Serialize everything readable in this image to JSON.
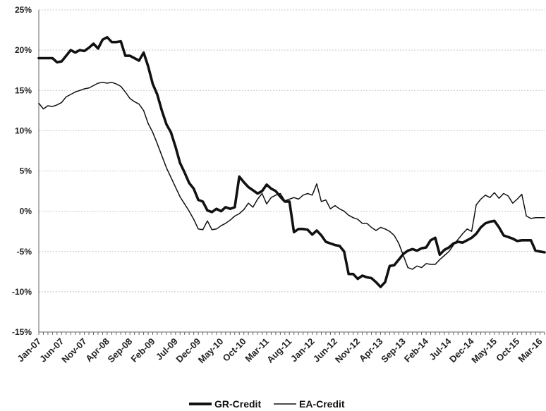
{
  "chart_data": {
    "type": "line",
    "title": "",
    "xlabel": "",
    "ylabel": "",
    "ylim": [
      -15,
      25
    ],
    "y_ticks": [
      25,
      20,
      15,
      10,
      5,
      0,
      -5,
      -10,
      -15
    ],
    "y_tick_labels": [
      "25%",
      "20%",
      "15%",
      "10%",
      "5%",
      "0%",
      "-5%",
      "-10%",
      "-15%"
    ],
    "x_tick_labels": [
      "Jan-07",
      "Jun-07",
      "Nov-07",
      "Apr-08",
      "Sep-08",
      "Feb-09",
      "Jul-09",
      "Dec-09",
      "May-10",
      "Oct-10",
      "Mar-11",
      "Aug-11",
      "Jan-12",
      "Jun-12",
      "Nov-12",
      "Apr-13",
      "Sep-13",
      "Feb-14",
      "Jul-14",
      "Dec-14",
      "May-15",
      "Oct-15",
      "Mar-16"
    ],
    "x_range": [
      "Jan-07",
      "Apr-16"
    ],
    "grid": true,
    "legend": "bottom",
    "series": [
      {
        "name": "GR-Credit",
        "color": "#111111",
        "style": "thick",
        "points": [
          [
            "Jan-07",
            19.0
          ],
          [
            "Feb-07",
            19.0
          ],
          [
            "Mar-07",
            19.0
          ],
          [
            "Apr-07",
            19.0
          ],
          [
            "May-07",
            18.5
          ],
          [
            "Jun-07",
            18.6
          ],
          [
            "Jul-07",
            19.3
          ],
          [
            "Aug-07",
            20.0
          ],
          [
            "Sep-07",
            19.7
          ],
          [
            "Oct-07",
            20.0
          ],
          [
            "Nov-07",
            19.9
          ],
          [
            "Dec-07",
            20.3
          ],
          [
            "Jan-08",
            20.8
          ],
          [
            "Feb-08",
            20.2
          ],
          [
            "Mar-08",
            21.3
          ],
          [
            "Apr-08",
            21.6
          ],
          [
            "May-08",
            21.0
          ],
          [
            "Jun-08",
            21.0
          ],
          [
            "Jul-08",
            21.1
          ],
          [
            "Aug-08",
            19.3
          ],
          [
            "Sep-08",
            19.3
          ],
          [
            "Oct-08",
            19.0
          ],
          [
            "Nov-08",
            18.7
          ],
          [
            "Dec-08",
            19.7
          ],
          [
            "Jan-09",
            18.0
          ],
          [
            "Feb-09",
            15.8
          ],
          [
            "Mar-09",
            14.5
          ],
          [
            "Apr-09",
            12.5
          ],
          [
            "May-09",
            10.8
          ],
          [
            "Jun-09",
            9.8
          ],
          [
            "Jul-09",
            8.0
          ],
          [
            "Aug-09",
            6.0
          ],
          [
            "Sep-09",
            4.8
          ],
          [
            "Oct-09",
            3.5
          ],
          [
            "Nov-09",
            2.8
          ],
          [
            "Dec-09",
            1.4
          ],
          [
            "Jan-10",
            1.2
          ],
          [
            "Feb-10",
            0.1
          ],
          [
            "Mar-10",
            -0.1
          ],
          [
            "Apr-10",
            0.3
          ],
          [
            "May-10",
            0.0
          ],
          [
            "Jun-10",
            0.5
          ],
          [
            "Jul-10",
            0.3
          ],
          [
            "Aug-10",
            0.5
          ],
          [
            "Sep-10",
            4.3
          ],
          [
            "Oct-10",
            3.6
          ],
          [
            "Nov-10",
            3.0
          ],
          [
            "Dec-10",
            2.6
          ],
          [
            "Jan-11",
            2.2
          ],
          [
            "Feb-11",
            2.5
          ],
          [
            "Mar-11",
            3.3
          ],
          [
            "Apr-11",
            2.8
          ],
          [
            "May-11",
            2.5
          ],
          [
            "Jun-11",
            1.8
          ],
          [
            "Jul-11",
            1.2
          ],
          [
            "Aug-11",
            1.2
          ],
          [
            "Sep-11",
            -2.6
          ],
          [
            "Oct-11",
            -2.2
          ],
          [
            "Nov-11",
            -2.2
          ],
          [
            "Dec-11",
            -2.3
          ],
          [
            "Jan-12",
            -2.9
          ],
          [
            "Feb-12",
            -2.4
          ],
          [
            "Mar-12",
            -3.0
          ],
          [
            "Apr-12",
            -3.8
          ],
          [
            "May-12",
            -4.0
          ],
          [
            "Jun-12",
            -4.2
          ],
          [
            "Jul-12",
            -4.3
          ],
          [
            "Aug-12",
            -5.0
          ],
          [
            "Sep-12",
            -7.8
          ],
          [
            "Oct-12",
            -7.8
          ],
          [
            "Nov-12",
            -8.4
          ],
          [
            "Dec-12",
            -8.0
          ],
          [
            "Jan-13",
            -8.2
          ],
          [
            "Feb-13",
            -8.3
          ],
          [
            "Mar-13",
            -8.8
          ],
          [
            "Apr-13",
            -9.4
          ],
          [
            "May-13",
            -8.8
          ],
          [
            "Jun-13",
            -6.8
          ],
          [
            "Jul-13",
            -6.7
          ],
          [
            "Aug-13",
            -6.0
          ],
          [
            "Sep-13",
            -5.3
          ],
          [
            "Oct-13",
            -4.9
          ],
          [
            "Nov-13",
            -4.7
          ],
          [
            "Dec-13",
            -4.9
          ],
          [
            "Jan-14",
            -4.6
          ],
          [
            "Feb-14",
            -4.5
          ],
          [
            "Mar-14",
            -3.6
          ],
          [
            "Apr-14",
            -3.3
          ],
          [
            "May-14",
            -5.4
          ],
          [
            "Jun-14",
            -4.8
          ],
          [
            "Jul-14",
            -4.5
          ],
          [
            "Aug-14",
            -4.0
          ],
          [
            "Sep-14",
            -3.8
          ],
          [
            "Oct-14",
            -3.9
          ],
          [
            "Nov-14",
            -3.6
          ],
          [
            "Dec-14",
            -3.3
          ],
          [
            "Jan-15",
            -2.8
          ],
          [
            "Feb-15",
            -2.0
          ],
          [
            "Mar-15",
            -1.5
          ],
          [
            "Apr-15",
            -1.3
          ],
          [
            "May-15",
            -1.2
          ],
          [
            "Jun-15",
            -2.0
          ],
          [
            "Jul-15",
            -3.0
          ],
          [
            "Aug-15",
            -3.2
          ],
          [
            "Sep-15",
            -3.4
          ],
          [
            "Oct-15",
            -3.7
          ],
          [
            "Nov-15",
            -3.6
          ],
          [
            "Dec-15",
            -3.6
          ],
          [
            "Jan-16",
            -3.6
          ],
          [
            "Feb-16",
            -4.9
          ],
          [
            "Mar-16",
            -5.0
          ],
          [
            "Apr-16",
            -5.1
          ]
        ]
      },
      {
        "name": "EA-Credit",
        "color": "#111111",
        "style": "thin",
        "points": [
          [
            "Jan-07",
            13.4
          ],
          [
            "Feb-07",
            12.7
          ],
          [
            "Mar-07",
            13.1
          ],
          [
            "Apr-07",
            13.0
          ],
          [
            "May-07",
            13.2
          ],
          [
            "Jun-07",
            13.5
          ],
          [
            "Jul-07",
            14.2
          ],
          [
            "Aug-07",
            14.5
          ],
          [
            "Sep-07",
            14.8
          ],
          [
            "Oct-07",
            15.0
          ],
          [
            "Nov-07",
            15.2
          ],
          [
            "Dec-07",
            15.3
          ],
          [
            "Jan-08",
            15.6
          ],
          [
            "Feb-08",
            15.9
          ],
          [
            "Mar-08",
            16.0
          ],
          [
            "Apr-08",
            15.9
          ],
          [
            "May-08",
            16.0
          ],
          [
            "Jun-08",
            15.8
          ],
          [
            "Jul-08",
            15.5
          ],
          [
            "Aug-08",
            14.8
          ],
          [
            "Sep-08",
            14.0
          ],
          [
            "Oct-08",
            13.6
          ],
          [
            "Nov-08",
            13.3
          ],
          [
            "Dec-08",
            12.5
          ],
          [
            "Jan-09",
            10.9
          ],
          [
            "Feb-09",
            9.8
          ],
          [
            "Mar-09",
            8.4
          ],
          [
            "Apr-09",
            6.9
          ],
          [
            "May-09",
            5.4
          ],
          [
            "Jun-09",
            4.2
          ],
          [
            "Jul-09",
            3.0
          ],
          [
            "Aug-09",
            1.8
          ],
          [
            "Sep-09",
            0.9
          ],
          [
            "Oct-09",
            0.0
          ],
          [
            "Nov-09",
            -1.0
          ],
          [
            "Dec-09",
            -2.2
          ],
          [
            "Jan-10",
            -2.3
          ],
          [
            "Feb-10",
            -1.2
          ],
          [
            "Mar-10",
            -2.3
          ],
          [
            "Apr-10",
            -2.2
          ],
          [
            "May-10",
            -1.8
          ],
          [
            "Jun-10",
            -1.5
          ],
          [
            "Jul-10",
            -1.1
          ],
          [
            "Aug-10",
            -0.6
          ],
          [
            "Sep-10",
            -0.3
          ],
          [
            "Oct-10",
            0.2
          ],
          [
            "Nov-10",
            1.0
          ],
          [
            "Dec-10",
            0.5
          ],
          [
            "Jan-11",
            1.5
          ],
          [
            "Feb-11",
            2.2
          ],
          [
            "Mar-11",
            0.9
          ],
          [
            "Apr-11",
            1.7
          ],
          [
            "May-11",
            2.0
          ],
          [
            "Jun-11",
            2.2
          ],
          [
            "Jul-11",
            1.3
          ],
          [
            "Aug-11",
            1.5
          ],
          [
            "Sep-11",
            1.7
          ],
          [
            "Oct-11",
            1.5
          ],
          [
            "Nov-11",
            2.0
          ],
          [
            "Dec-11",
            2.2
          ],
          [
            "Jan-12",
            2.0
          ],
          [
            "Feb-12",
            3.4
          ],
          [
            "Mar-12",
            1.2
          ],
          [
            "Apr-12",
            1.4
          ],
          [
            "May-12",
            0.3
          ],
          [
            "Jun-12",
            0.7
          ],
          [
            "Jul-12",
            0.3
          ],
          [
            "Aug-12",
            0.0
          ],
          [
            "Sep-12",
            -0.5
          ],
          [
            "Oct-12",
            -0.8
          ],
          [
            "Nov-12",
            -1.0
          ],
          [
            "Dec-12",
            -1.5
          ],
          [
            "Jan-13",
            -1.5
          ],
          [
            "Feb-13",
            -2.0
          ],
          [
            "Mar-13",
            -2.4
          ],
          [
            "Apr-13",
            -2.0
          ],
          [
            "May-13",
            -2.2
          ],
          [
            "Jun-13",
            -2.5
          ],
          [
            "Jul-13",
            -3.0
          ],
          [
            "Aug-13",
            -4.0
          ],
          [
            "Sep-13",
            -5.5
          ],
          [
            "Oct-13",
            -7.0
          ],
          [
            "Nov-13",
            -7.2
          ],
          [
            "Dec-13",
            -6.8
          ],
          [
            "Jan-14",
            -7.0
          ],
          [
            "Feb-14",
            -6.5
          ],
          [
            "Mar-14",
            -6.6
          ],
          [
            "Apr-14",
            -6.6
          ],
          [
            "May-14",
            -6.0
          ],
          [
            "Jun-14",
            -5.5
          ],
          [
            "Jul-14",
            -5.0
          ],
          [
            "Aug-14",
            -4.2
          ],
          [
            "Sep-14",
            -3.5
          ],
          [
            "Oct-14",
            -2.8
          ],
          [
            "Nov-14",
            -2.2
          ],
          [
            "Dec-14",
            -2.5
          ],
          [
            "Jan-15",
            0.8
          ],
          [
            "Feb-15",
            1.5
          ],
          [
            "Mar-15",
            2.0
          ],
          [
            "Apr-15",
            1.7
          ],
          [
            "May-15",
            2.3
          ],
          [
            "Jun-15",
            1.6
          ],
          [
            "Jul-15",
            2.2
          ],
          [
            "Aug-15",
            1.9
          ],
          [
            "Sep-15",
            1.0
          ],
          [
            "Oct-15",
            1.5
          ],
          [
            "Nov-15",
            2.1
          ],
          [
            "Dec-15",
            -0.6
          ],
          [
            "Jan-16",
            -0.9
          ],
          [
            "Feb-16",
            -0.8
          ],
          [
            "Mar-16",
            -0.8
          ],
          [
            "Apr-16",
            -0.8
          ]
        ]
      }
    ]
  }
}
